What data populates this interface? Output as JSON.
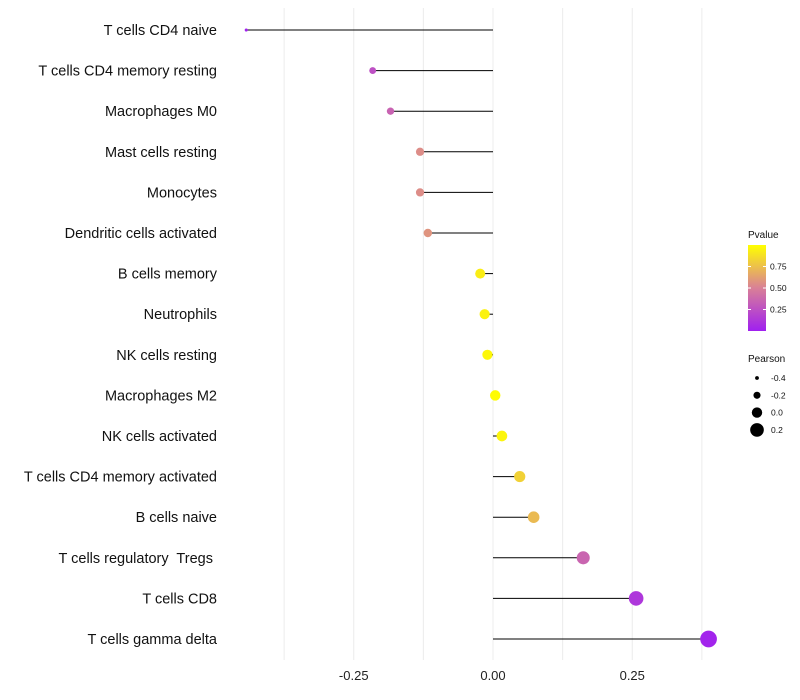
{
  "chart_data": {
    "type": "lollipop",
    "title": "",
    "xlabel": "",
    "ylabel": "",
    "xlim": [
      -0.445,
      0.41
    ],
    "x_ticks": [
      -0.25,
      0.0,
      0.25
    ],
    "x_tick_labels": [
      "-0.25",
      "0.00",
      "0.25"
    ],
    "grid": true,
    "categories": [
      "T cells CD4 naive",
      "T cells CD4 memory resting",
      "Macrophages M0",
      "Mast cells resting",
      "Monocytes",
      "Dendritic cells activated",
      "B cells memory",
      "Neutrophils",
      "NK cells resting",
      "Macrophages M2",
      "NK cells activated",
      "T cells CD4 memory activated",
      "B cells naive",
      "T cells regulatory  Tregs ",
      "T cells CD8",
      "T cells gamma delta"
    ],
    "pearson": [
      -0.443,
      -0.216,
      -0.184,
      -0.131,
      -0.131,
      -0.117,
      -0.023,
      -0.015,
      -0.01,
      0.004,
      0.016,
      0.048,
      0.073,
      0.162,
      0.257,
      0.387
    ],
    "pvalue": [
      0.01,
      0.25,
      0.35,
      0.55,
      0.55,
      0.58,
      0.93,
      0.95,
      0.97,
      0.99,
      0.96,
      0.82,
      0.73,
      0.36,
      0.12,
      0.02
    ],
    "legend": {
      "pvalue": {
        "title": "Pvalue",
        "ticks": [
          0.25,
          0.5,
          0.75
        ],
        "tick_labels": [
          "0.25",
          "0.50",
          "0.75"
        ],
        "range": [
          0.0,
          1.0
        ],
        "colors": [
          "#a020f0",
          "#d98097",
          "#ffff00"
        ]
      },
      "pearson": {
        "title": "Pearson",
        "values": [
          -0.4,
          -0.2,
          0.0,
          0.2
        ],
        "labels": [
          "-0.4",
          "-0.2",
          "0.0",
          "0.2"
        ]
      },
      "placement": "right"
    }
  }
}
